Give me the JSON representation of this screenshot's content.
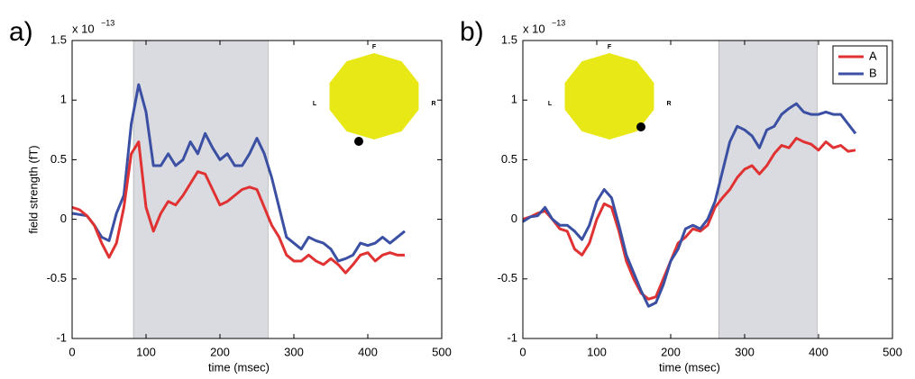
{
  "chart_data": [
    {
      "type": "line",
      "panel_label": "a)",
      "y_multiplier": "x 10",
      "y_multiplier_exponent": "−13",
      "xlabel": "time (msec)",
      "ylabel": "field strength (fT)",
      "xlim": [
        0,
        500
      ],
      "xticks": [
        0,
        100,
        200,
        300,
        400,
        500
      ],
      "ylim": [
        -1,
        1.5
      ],
      "yticks": [
        -1,
        -0.5,
        0,
        0.5,
        1,
        1.5
      ],
      "shade": [
        83,
        265
      ],
      "inset_labels": [
        "F",
        "L",
        "R"
      ],
      "x": [
        0,
        10,
        20,
        30,
        40,
        50,
        60,
        70,
        80,
        90,
        100,
        110,
        120,
        130,
        140,
        150,
        160,
        170,
        180,
        190,
        200,
        210,
        220,
        230,
        240,
        250,
        260,
        270,
        280,
        290,
        300,
        310,
        320,
        330,
        340,
        350,
        360,
        370,
        380,
        390,
        400,
        410,
        420,
        430,
        440,
        450
      ],
      "series": [
        {
          "color": "#3b4fa3",
          "values": [
            0.05,
            0.04,
            0.03,
            -0.05,
            -0.15,
            -0.18,
            0.05,
            0.2,
            0.8,
            1.13,
            0.9,
            0.45,
            0.45,
            0.55,
            0.45,
            0.5,
            0.65,
            0.55,
            0.72,
            0.6,
            0.5,
            0.55,
            0.45,
            0.45,
            0.55,
            0.68,
            0.55,
            0.35,
            0.1,
            -0.15,
            -0.2,
            -0.25,
            -0.15,
            -0.18,
            -0.2,
            -0.25,
            -0.35,
            -0.33,
            -0.3,
            -0.2,
            -0.22,
            -0.2,
            -0.15,
            -0.2,
            -0.15,
            -0.1
          ]
        },
        {
          "color": "#e03232",
          "values": [
            0.1,
            0.08,
            0.03,
            -0.05,
            -0.2,
            -0.32,
            -0.2,
            0.1,
            0.55,
            0.65,
            0.1,
            -0.1,
            0.05,
            0.15,
            0.12,
            0.2,
            0.3,
            0.4,
            0.38,
            0.25,
            0.12,
            0.15,
            0.2,
            0.25,
            0.27,
            0.25,
            0.1,
            -0.05,
            -0.15,
            -0.3,
            -0.35,
            -0.35,
            -0.3,
            -0.35,
            -0.38,
            -0.33,
            -0.38,
            -0.45,
            -0.38,
            -0.3,
            -0.28,
            -0.35,
            -0.3,
            -0.28,
            -0.3,
            -0.3
          ]
        }
      ]
    },
    {
      "type": "line",
      "panel_label": "b)",
      "y_multiplier": "x 10",
      "y_multiplier_exponent": "−13",
      "xlabel": "time (msec)",
      "xlim": [
        0,
        500
      ],
      "xticks": [
        0,
        100,
        200,
        300,
        400,
        500
      ],
      "ylim": [
        -1,
        1.5
      ],
      "yticks": [
        -1,
        -0.5,
        0,
        0.5,
        1,
        1.5
      ],
      "shade": [
        265,
        398
      ],
      "inset_labels": [
        "F",
        "L",
        "R"
      ],
      "legend": "upper right",
      "x": [
        0,
        10,
        20,
        30,
        40,
        50,
        60,
        70,
        80,
        90,
        100,
        110,
        120,
        130,
        140,
        150,
        160,
        170,
        180,
        190,
        200,
        210,
        220,
        230,
        240,
        250,
        260,
        270,
        280,
        290,
        300,
        310,
        320,
        330,
        340,
        350,
        360,
        370,
        380,
        390,
        400,
        410,
        420,
        430,
        440,
        450
      ],
      "series": [
        {
          "name": "A",
          "color": "#e03232",
          "values": [
            0,
            0.02,
            0.05,
            0.07,
            0,
            -0.08,
            -0.1,
            -0.25,
            -0.3,
            -0.2,
            0,
            0.13,
            0.1,
            -0.1,
            -0.35,
            -0.5,
            -0.62,
            -0.67,
            -0.65,
            -0.5,
            -0.35,
            -0.2,
            -0.15,
            -0.08,
            -0.1,
            -0.05,
            0.1,
            0.18,
            0.25,
            0.35,
            0.42,
            0.45,
            0.38,
            0.45,
            0.55,
            0.62,
            0.6,
            0.68,
            0.65,
            0.63,
            0.58,
            0.65,
            0.6,
            0.62,
            0.57,
            0.58
          ]
        },
        {
          "name": "B",
          "color": "#3b4fa3",
          "values": [
            -0.02,
            0.02,
            0.03,
            0.1,
            0,
            -0.05,
            -0.05,
            -0.1,
            -0.17,
            -0.05,
            0.15,
            0.25,
            0.18,
            -0.05,
            -0.3,
            -0.45,
            -0.6,
            -0.73,
            -0.7,
            -0.55,
            -0.35,
            -0.25,
            -0.08,
            -0.05,
            -0.08,
            0,
            0.15,
            0.4,
            0.65,
            0.78,
            0.75,
            0.7,
            0.6,
            0.75,
            0.78,
            0.88,
            0.93,
            0.97,
            0.9,
            0.88,
            0.88,
            0.9,
            0.88,
            0.88,
            0.8,
            0.72
          ]
        }
      ]
    }
  ]
}
